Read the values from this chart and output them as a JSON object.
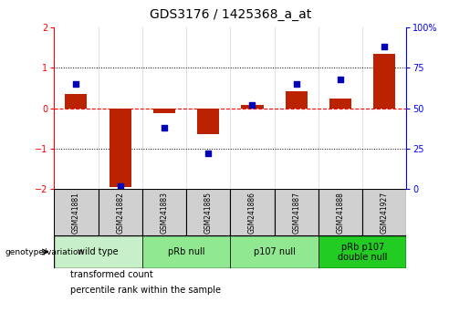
{
  "title": "GDS3176 / 1425368_a_at",
  "samples": [
    "GSM241881",
    "GSM241882",
    "GSM241883",
    "GSM241885",
    "GSM241886",
    "GSM241887",
    "GSM241888",
    "GSM241927"
  ],
  "transformed_count": [
    0.35,
    -1.95,
    -0.12,
    -0.65,
    0.08,
    0.42,
    0.25,
    1.35
  ],
  "percentile_rank": [
    65,
    2,
    38,
    22,
    52,
    65,
    68,
    88
  ],
  "groups": [
    {
      "label": "wild type",
      "start": 0,
      "end": 2,
      "color": "#c8f0c8"
    },
    {
      "label": "pRb null",
      "start": 2,
      "end": 4,
      "color": "#90e890"
    },
    {
      "label": "p107 null",
      "start": 4,
      "end": 6,
      "color": "#90e890"
    },
    {
      "label": "pRb p107\ndouble null",
      "start": 6,
      "end": 8,
      "color": "#22cc22"
    }
  ],
  "ylim_left": [
    -2,
    2
  ],
  "ylim_right": [
    0,
    100
  ],
  "yticks_left": [
    -2,
    -1,
    0,
    1,
    2
  ],
  "yticks_right": [
    0,
    25,
    50,
    75,
    100
  ],
  "ytick_labels_right": [
    "0",
    "25",
    "50",
    "75",
    "100%"
  ],
  "bar_color": "#bb2200",
  "dot_color": "#0000bb",
  "dot_size": 25,
  "bar_width": 0.5,
  "title_fontsize": 10,
  "tick_fontsize": 7,
  "sample_fontsize": 5.5,
  "geno_fontsize": 7,
  "legend_fontsize": 7,
  "legend_label_bar": "transformed count",
  "legend_label_dot": "percentile rank within the sample",
  "genotype_label": "genotype/variation"
}
